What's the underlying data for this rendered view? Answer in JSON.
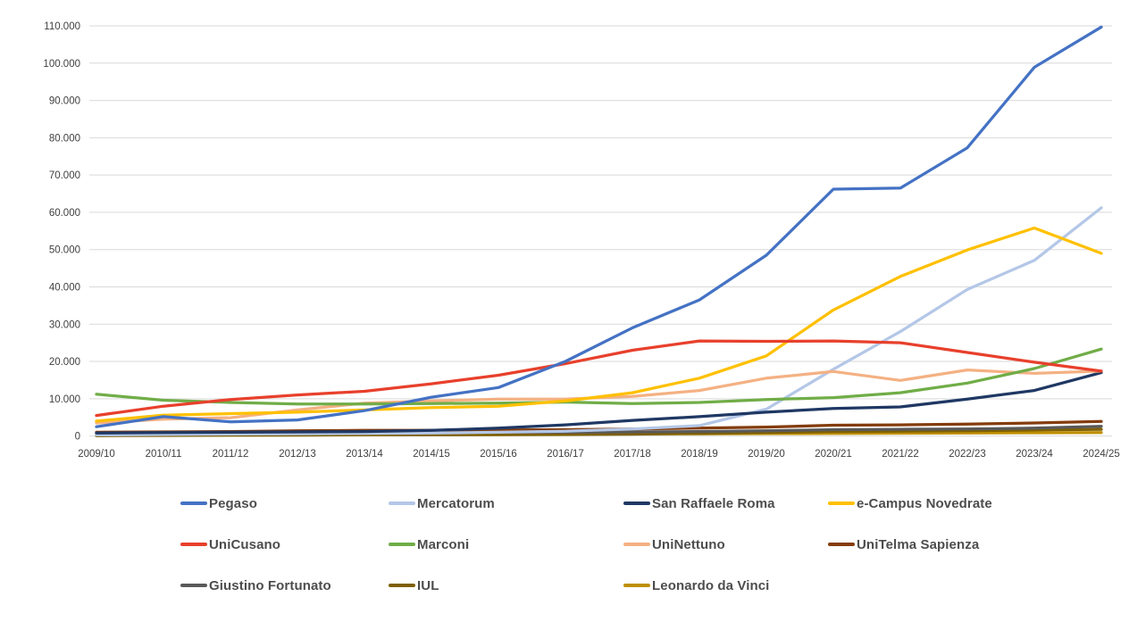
{
  "chart_data": {
    "type": "line",
    "title": "",
    "xlabel": "",
    "ylabel": "",
    "background": "#ffffff",
    "grid": true,
    "grid_color": "#d9d9d9",
    "axis_text_color": "#404040",
    "legend_position": "bottom",
    "legend_text_color": "#4d4d4d",
    "ylim": [
      0,
      110000
    ],
    "y_tick_step": 10000,
    "y_tick_labels": [
      "0",
      "10.000",
      "20.000",
      "30.000",
      "40.000",
      "50.000",
      "60.000",
      "70.000",
      "80.000",
      "90.000",
      "100.000",
      "110.000"
    ],
    "categories": [
      "2009/10",
      "2010/11",
      "2011/12",
      "2012/13",
      "2013/14",
      "2014/15",
      "2015/16",
      "2016/17",
      "2017/18",
      "2018/19",
      "2019/20",
      "2020/21",
      "2021/22",
      "2022/23",
      "2023/24",
      "2024/25"
    ],
    "series": [
      {
        "name": "Pegaso",
        "color": "#4472c4",
        "values": [
          2500,
          5200,
          3800,
          4300,
          6800,
          10400,
          13000,
          20000,
          29000,
          36500,
          48500,
          66200,
          66500,
          77300,
          98900,
          109700
        ]
      },
      {
        "name": "Mercatorum",
        "color": "#b4c7e7",
        "values": [
          300,
          400,
          500,
          600,
          700,
          800,
          1000,
          1300,
          1900,
          2800,
          7200,
          17900,
          28000,
          39300,
          47100,
          61200
        ]
      },
      {
        "name": "San Raffaele Roma",
        "color": "#1f3864",
        "values": [
          800,
          900,
          1000,
          1100,
          1200,
          1500,
          2100,
          3000,
          4200,
          5200,
          6400,
          7400,
          7800,
          9900,
          12200,
          17000
        ]
      },
      {
        "name": "e-Campus Novedrate",
        "color": "#ffc000",
        "values": [
          4000,
          5600,
          6000,
          6400,
          7000,
          7600,
          8000,
          9400,
          11600,
          15500,
          21500,
          33800,
          42800,
          49900,
          55800,
          49000
        ]
      },
      {
        "name": "UniCusano",
        "color": "#e8402c",
        "values": [
          5500,
          8000,
          9800,
          11000,
          12000,
          14000,
          16300,
          19400,
          23000,
          25500,
          25400,
          25500,
          25000,
          22400,
          19800,
          17400
        ]
      },
      {
        "name": "Marconi",
        "color": "#70ad47",
        "values": [
          11200,
          9600,
          9000,
          8600,
          8600,
          8700,
          8800,
          9100,
          8700,
          9000,
          9800,
          10300,
          11600,
          14200,
          18100,
          23300
        ]
      },
      {
        "name": "UniNettuno",
        "color": "#f4b183",
        "values": [
          3500,
          4500,
          4900,
          7000,
          8800,
          9400,
          9900,
          9900,
          10600,
          12200,
          15500,
          17300,
          14900,
          17700,
          16800,
          17400
        ]
      },
      {
        "name": "UniTelma Sapienza",
        "color": "#843c0c",
        "values": [
          1000,
          1100,
          1200,
          1400,
          1500,
          1500,
          1600,
          1700,
          1900,
          2100,
          2400,
          2900,
          3000,
          3200,
          3500,
          3900
        ]
      },
      {
        "name": "Giustino Fortunato",
        "color": "#595959",
        "values": [
          600,
          700,
          800,
          900,
          900,
          900,
          1000,
          1000,
          1100,
          1200,
          1400,
          1700,
          1800,
          1900,
          2100,
          2600
        ]
      },
      {
        "name": "IUL",
        "color": "#7f6000",
        "values": [
          100,
          150,
          200,
          250,
          300,
          300,
          350,
          400,
          500,
          700,
          900,
          1200,
          1300,
          1400,
          1600,
          1800
        ]
      },
      {
        "name": "Leonardo da Vinci",
        "color": "#bf8f00",
        "values": [
          400,
          400,
          450,
          500,
          500,
          500,
          550,
          550,
          600,
          600,
          650,
          700,
          750,
          800,
          850,
          900
        ]
      }
    ]
  }
}
